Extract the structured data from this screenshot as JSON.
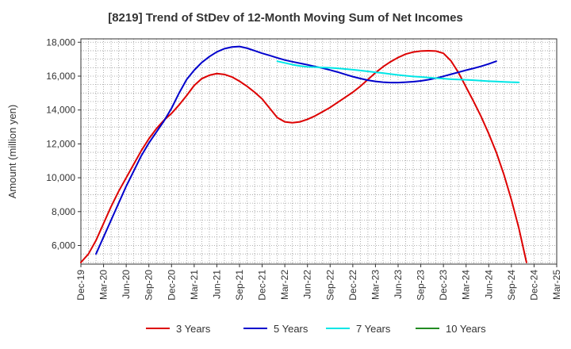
{
  "chart_data": {
    "type": "line",
    "title": "[8219]  Trend of StDev of 12-Month Moving Sum of Net Incomes",
    "xlabel": "",
    "ylabel": "Amount (million yen)",
    "ylim": [
      4900,
      18200
    ],
    "y_ticks": [
      6000,
      8000,
      10000,
      12000,
      14000,
      16000,
      18000
    ],
    "y_tick_labels": [
      "6,000",
      "8,000",
      "10,000",
      "12,000",
      "14,000",
      "16,000",
      "18,000"
    ],
    "x_tick_labels": [
      "Dec-19",
      "Mar-20",
      "Jun-20",
      "Sep-20",
      "Dec-20",
      "Mar-21",
      "Jun-21",
      "Sep-21",
      "Dec-21",
      "Mar-22",
      "Jun-22",
      "Sep-22",
      "Dec-22",
      "Mar-23",
      "Jun-23",
      "Sep-23",
      "Dec-23",
      "Mar-24",
      "Jun-24",
      "Sep-24",
      "Dec-24",
      "Mar-25"
    ],
    "grid": true,
    "legend_position": "bottom",
    "series": [
      {
        "name": "3 Years",
        "color": "#dd0000",
        "points": [
          [
            "2019-12",
            5000
          ],
          [
            "2020-01",
            5500
          ],
          [
            "2020-02",
            6300
          ],
          [
            "2020-03",
            7300
          ],
          [
            "2020-04",
            8300
          ],
          [
            "2020-05",
            9200
          ],
          [
            "2020-06",
            10000
          ],
          [
            "2020-07",
            10800
          ],
          [
            "2020-08",
            11600
          ],
          [
            "2020-09",
            12300
          ],
          [
            "2020-10",
            12900
          ],
          [
            "2020-11",
            13400
          ],
          [
            "2020-12",
            13800
          ],
          [
            "2021-01",
            14300
          ],
          [
            "2021-02",
            14850
          ],
          [
            "2021-03",
            15450
          ],
          [
            "2021-04",
            15850
          ],
          [
            "2021-05",
            16050
          ],
          [
            "2021-06",
            16150
          ],
          [
            "2021-07",
            16100
          ],
          [
            "2021-08",
            15950
          ],
          [
            "2021-09",
            15700
          ],
          [
            "2021-10",
            15400
          ],
          [
            "2021-11",
            15050
          ],
          [
            "2021-12",
            14650
          ],
          [
            "2022-01",
            14100
          ],
          [
            "2022-02",
            13550
          ],
          [
            "2022-03",
            13300
          ],
          [
            "2022-04",
            13250
          ],
          [
            "2022-05",
            13300
          ],
          [
            "2022-06",
            13450
          ],
          [
            "2022-07",
            13650
          ],
          [
            "2022-08",
            13900
          ],
          [
            "2022-09",
            14150
          ],
          [
            "2022-10",
            14450
          ],
          [
            "2022-11",
            14750
          ],
          [
            "2022-12",
            15050
          ],
          [
            "2023-01",
            15400
          ],
          [
            "2023-02",
            15800
          ],
          [
            "2023-03",
            16200
          ],
          [
            "2023-04",
            16550
          ],
          [
            "2023-05",
            16850
          ],
          [
            "2023-06",
            17100
          ],
          [
            "2023-07",
            17300
          ],
          [
            "2023-08",
            17420
          ],
          [
            "2023-09",
            17480
          ],
          [
            "2023-10",
            17500
          ],
          [
            "2023-11",
            17480
          ],
          [
            "2023-12",
            17350
          ],
          [
            "2024-01",
            16900
          ],
          [
            "2024-02",
            16200
          ],
          [
            "2024-03",
            15350
          ],
          [
            "2024-04",
            14500
          ],
          [
            "2024-05",
            13600
          ],
          [
            "2024-06",
            12600
          ],
          [
            "2024-07",
            11500
          ],
          [
            "2024-08",
            10200
          ],
          [
            "2024-09",
            8700
          ],
          [
            "2024-10",
            7000
          ],
          [
            "2024-11",
            5000
          ]
        ]
      },
      {
        "name": "5 Years",
        "color": "#0000cc",
        "points": [
          [
            "2020-02",
            5500
          ],
          [
            "2020-03",
            6500
          ],
          [
            "2020-04",
            7500
          ],
          [
            "2020-05",
            8500
          ],
          [
            "2020-06",
            9500
          ],
          [
            "2020-07",
            10400
          ],
          [
            "2020-08",
            11300
          ],
          [
            "2020-09",
            12050
          ],
          [
            "2020-10",
            12700
          ],
          [
            "2020-11",
            13350
          ],
          [
            "2020-12",
            14100
          ],
          [
            "2021-01",
            15000
          ],
          [
            "2021-02",
            15800
          ],
          [
            "2021-03",
            16350
          ],
          [
            "2021-04",
            16800
          ],
          [
            "2021-05",
            17150
          ],
          [
            "2021-06",
            17430
          ],
          [
            "2021-07",
            17620
          ],
          [
            "2021-08",
            17720
          ],
          [
            "2021-09",
            17750
          ],
          [
            "2021-10",
            17650
          ],
          [
            "2021-11",
            17500
          ],
          [
            "2021-12",
            17350
          ],
          [
            "2022-01",
            17220
          ],
          [
            "2022-02",
            17080
          ],
          [
            "2022-03",
            16950
          ],
          [
            "2022-04",
            16850
          ],
          [
            "2022-05",
            16760
          ],
          [
            "2022-06",
            16670
          ],
          [
            "2022-07",
            16570
          ],
          [
            "2022-08",
            16470
          ],
          [
            "2022-09",
            16360
          ],
          [
            "2022-10",
            16240
          ],
          [
            "2022-11",
            16100
          ],
          [
            "2022-12",
            15970
          ],
          [
            "2023-01",
            15860
          ],
          [
            "2023-02",
            15760
          ],
          [
            "2023-03",
            15690
          ],
          [
            "2023-04",
            15640
          ],
          [
            "2023-05",
            15620
          ],
          [
            "2023-06",
            15620
          ],
          [
            "2023-07",
            15640
          ],
          [
            "2023-08",
            15670
          ],
          [
            "2023-09",
            15720
          ],
          [
            "2023-10",
            15790
          ],
          [
            "2023-11",
            15880
          ],
          [
            "2023-12",
            15990
          ],
          [
            "2024-01",
            16110
          ],
          [
            "2024-02",
            16230
          ],
          [
            "2024-03",
            16350
          ],
          [
            "2024-04",
            16460
          ],
          [
            "2024-05",
            16580
          ],
          [
            "2024-06",
            16720
          ],
          [
            "2024-07",
            16880
          ]
        ]
      },
      {
        "name": "7 Years",
        "color": "#00e6e6",
        "points": [
          [
            "2022-02",
            16880
          ],
          [
            "2022-03",
            16780
          ],
          [
            "2022-04",
            16680
          ],
          [
            "2022-05",
            16600
          ],
          [
            "2022-06",
            16550
          ],
          [
            "2022-07",
            16530
          ],
          [
            "2022-08",
            16510
          ],
          [
            "2022-09",
            16490
          ],
          [
            "2022-10",
            16460
          ],
          [
            "2022-11",
            16420
          ],
          [
            "2022-12",
            16380
          ],
          [
            "2023-01",
            16330
          ],
          [
            "2023-02",
            16280
          ],
          [
            "2023-03",
            16230
          ],
          [
            "2023-04",
            16180
          ],
          [
            "2023-05",
            16120
          ],
          [
            "2023-06",
            16070
          ],
          [
            "2023-07",
            16020
          ],
          [
            "2023-08",
            15980
          ],
          [
            "2023-09",
            15950
          ],
          [
            "2023-10",
            15920
          ],
          [
            "2023-11",
            15880
          ],
          [
            "2023-12",
            15850
          ],
          [
            "2024-01",
            15820
          ],
          [
            "2024-02",
            15800
          ],
          [
            "2024-03",
            15780
          ],
          [
            "2024-04",
            15760
          ],
          [
            "2024-05",
            15730
          ],
          [
            "2024-06",
            15700
          ],
          [
            "2024-07",
            15680
          ],
          [
            "2024-08",
            15660
          ],
          [
            "2024-09",
            15640
          ],
          [
            "2024-10",
            15630
          ]
        ]
      },
      {
        "name": "10 Years",
        "color": "#228b22",
        "points": []
      }
    ]
  }
}
